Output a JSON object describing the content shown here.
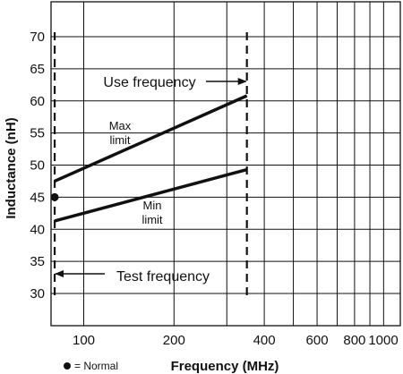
{
  "chart_data": {
    "type": "line",
    "xlabel": "Frequency (MHz)",
    "ylabel": "Inductance (nH)",
    "x_scale": "log",
    "xlim": [
      75,
      1000
    ],
    "ylim": [
      26,
      75
    ],
    "grid": true,
    "x_ticks": [
      100,
      200,
      400,
      600,
      800,
      1000
    ],
    "x_tick_labels": [
      "100",
      "200",
      "400",
      "600",
      "800",
      "1000"
    ],
    "x_gridlines": [
      100,
      200,
      300,
      400,
      500,
      600,
      700,
      800,
      900,
      1000
    ],
    "y_ticks": [
      30,
      35,
      40,
      45,
      50,
      55,
      60,
      65,
      70
    ],
    "y_tick_labels": [
      "30",
      "35",
      "40",
      "45",
      "50",
      "55",
      "60",
      "65",
      "70"
    ],
    "series": [
      {
        "name": "Max limit",
        "x": [
          80,
          350
        ],
        "y": [
          47.5,
          60.8
        ]
      },
      {
        "name": "Min limit",
        "x": [
          80,
          350
        ],
        "y": [
          41.3,
          49.3
        ]
      }
    ],
    "series_labels": [
      {
        "lines": [
          "Max",
          "limit"
        ]
      },
      {
        "lines": [
          "Min",
          "limit"
        ]
      }
    ],
    "reference_lines": [
      {
        "x": 80,
        "style": "dashed",
        "label": "Test frequency"
      },
      {
        "x": 350,
        "style": "dashed",
        "label": "Use frequency"
      }
    ],
    "points": [
      {
        "x": 80,
        "y": 45,
        "label": "Normal"
      }
    ],
    "legend": {
      "marker": "●",
      "text": "= Normal",
      "placement": "bottom-left"
    }
  }
}
